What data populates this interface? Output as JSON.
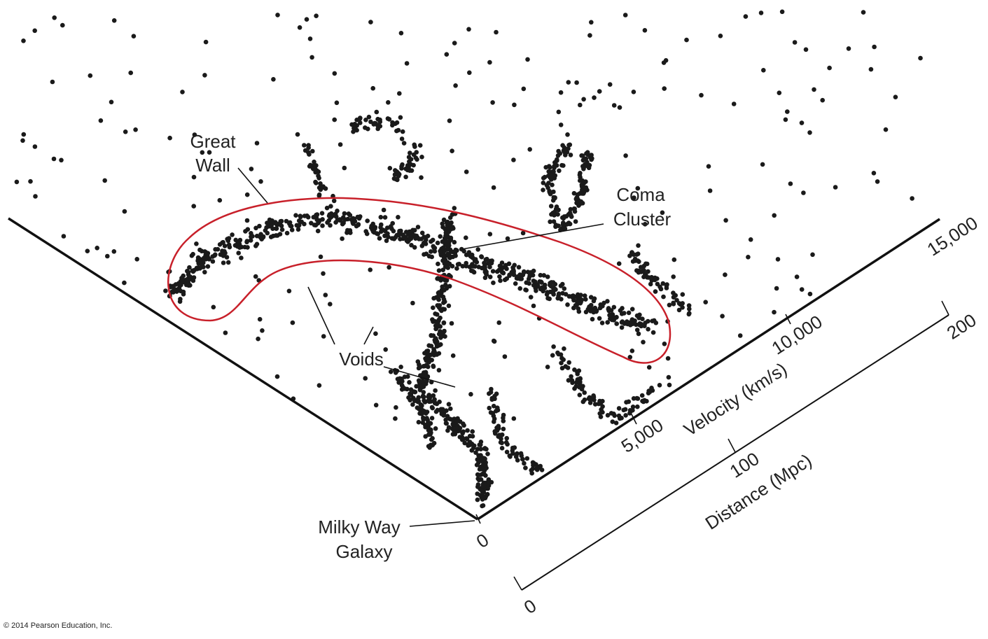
{
  "labels": {
    "great_wall": [
      "Great",
      "Wall"
    ],
    "coma_cluster": [
      "Coma",
      "Cluster"
    ],
    "voids": "Voids",
    "milky_way": [
      "Milky Way",
      "Galaxy"
    ]
  },
  "velocity_axis": {
    "title": "Velocity (km/s)",
    "ticks": [
      "0",
      "5,000",
      "10,000",
      "15,000"
    ]
  },
  "distance_axis": {
    "title": "Distance (Mpc)",
    "ticks": [
      "0",
      "100",
      "200"
    ]
  },
  "copyright": "© 2014 Pearson Education, Inc."
}
